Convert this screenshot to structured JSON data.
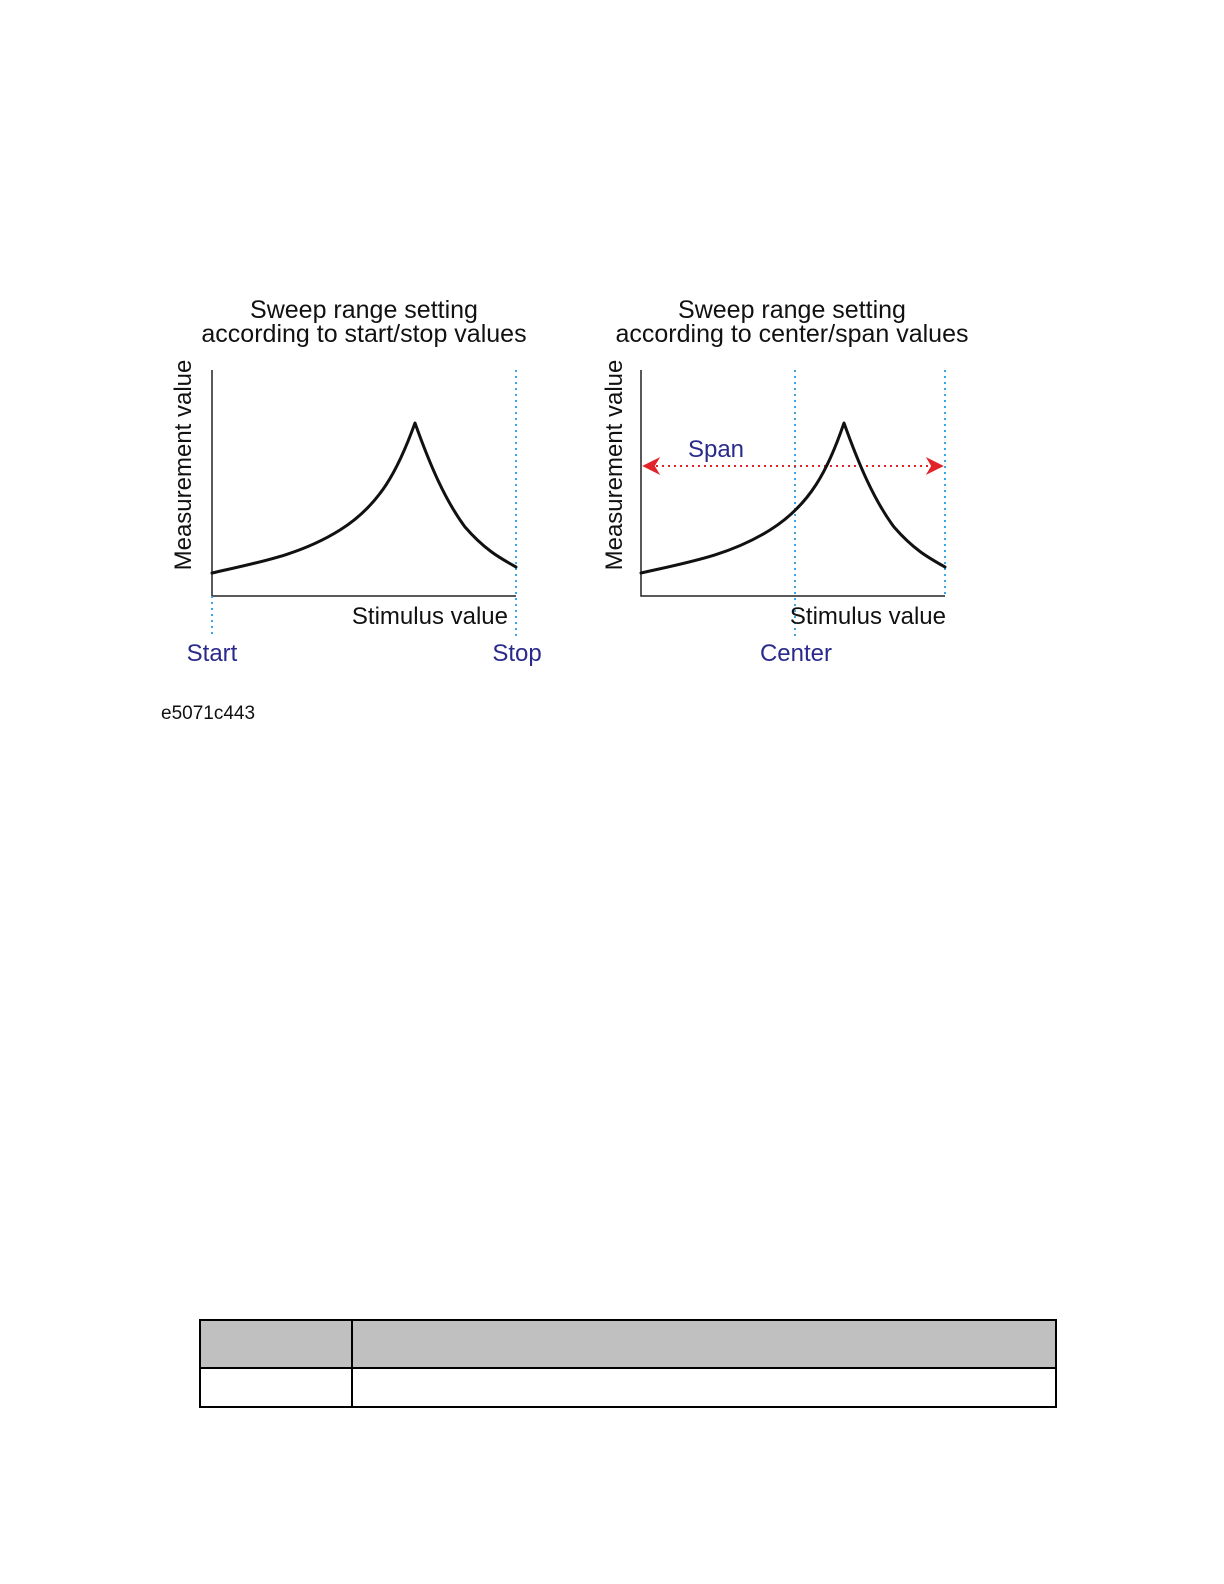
{
  "figure": {
    "id_label": "e5071c443",
    "colors": {
      "curve": "#111111",
      "marker": "#3aa6e6",
      "marker_label": "#2a2a8c",
      "span_arrow": "#e0242a"
    },
    "left_panel": {
      "title_line1": "Sweep range setting",
      "title_line2": "according to start/stop values",
      "y_axis_label": "Measurement value",
      "x_axis_label": "Stimulus value",
      "markers": [
        "Start",
        "Stop"
      ]
    },
    "right_panel": {
      "title_line1": "Sweep range setting",
      "title_line2": "according to center/span values",
      "y_axis_label": "Measurement value",
      "x_axis_label": "Stimulus value",
      "markers": [
        "Center"
      ],
      "span_label": "Span"
    }
  },
  "table": {
    "header": [
      "",
      ""
    ],
    "rows": [
      [
        "",
        ""
      ]
    ]
  }
}
